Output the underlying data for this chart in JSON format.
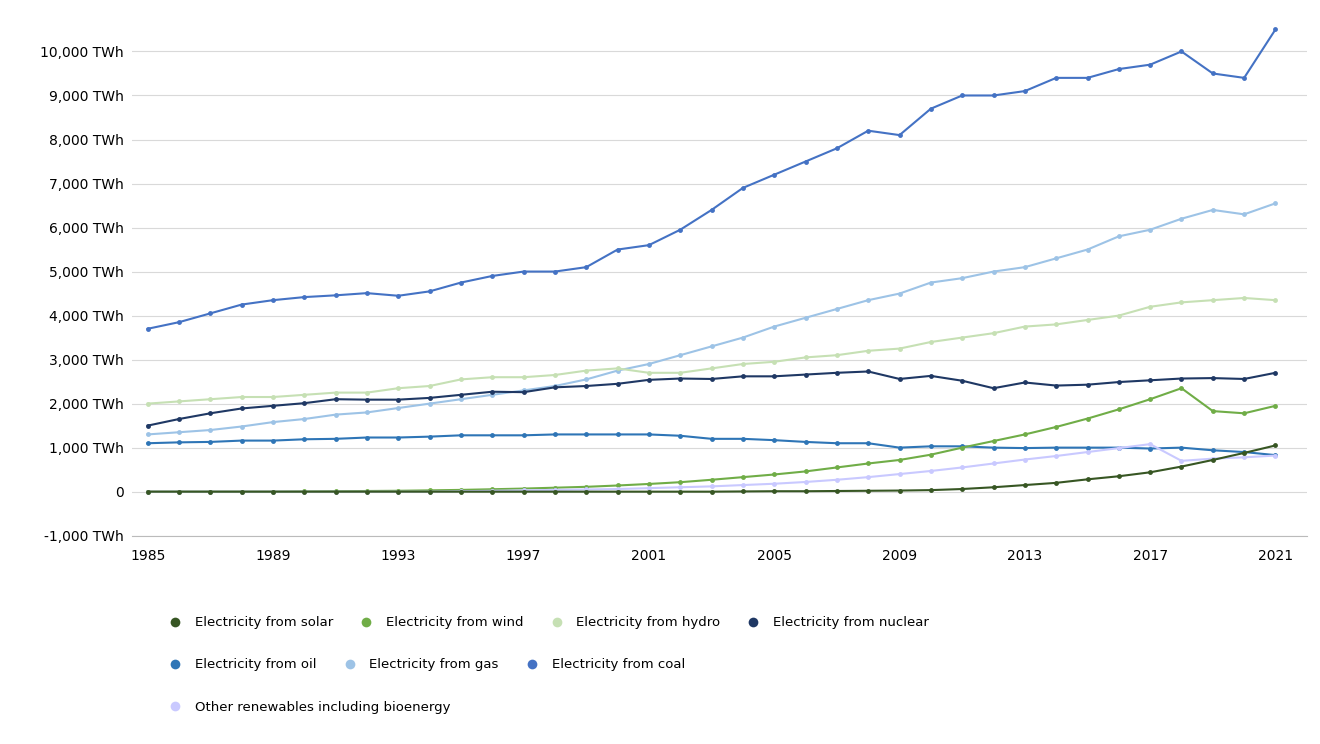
{
  "years": [
    1985,
    1986,
    1987,
    1988,
    1989,
    1990,
    1991,
    1992,
    1993,
    1994,
    1995,
    1996,
    1997,
    1998,
    1999,
    2000,
    2001,
    2002,
    2003,
    2004,
    2005,
    2006,
    2007,
    2008,
    2009,
    2010,
    2011,
    2012,
    2013,
    2014,
    2015,
    2016,
    2017,
    2018,
    2019,
    2020,
    2021
  ],
  "coal": [
    3700,
    3850,
    4050,
    4250,
    4350,
    4420,
    4460,
    4510,
    4450,
    4550,
    4750,
    4900,
    5000,
    5000,
    5100,
    5500,
    5600,
    5950,
    6400,
    6900,
    7200,
    7500,
    7800,
    8200,
    8100,
    8700,
    9000,
    9000,
    9100,
    9400,
    9400,
    9600,
    9700,
    10000,
    9500,
    9400,
    10500
  ],
  "gas": [
    1300,
    1350,
    1400,
    1480,
    1580,
    1650,
    1750,
    1800,
    1900,
    2000,
    2100,
    2200,
    2300,
    2400,
    2550,
    2750,
    2900,
    3100,
    3300,
    3500,
    3750,
    3950,
    4150,
    4350,
    4500,
    4750,
    4850,
    5000,
    5100,
    5300,
    5500,
    5800,
    5950,
    6200,
    6400,
    6300,
    6550
  ],
  "hydro": [
    2000,
    2050,
    2100,
    2150,
    2150,
    2200,
    2250,
    2250,
    2350,
    2400,
    2550,
    2600,
    2600,
    2650,
    2750,
    2800,
    2700,
    2700,
    2800,
    2900,
    2950,
    3050,
    3100,
    3200,
    3250,
    3400,
    3500,
    3600,
    3750,
    3800,
    3900,
    4000,
    4200,
    4300,
    4350,
    4400,
    4350
  ],
  "nuclear": [
    1500,
    1650,
    1780,
    1890,
    1950,
    2010,
    2100,
    2090,
    2090,
    2130,
    2200,
    2270,
    2260,
    2370,
    2400,
    2450,
    2540,
    2570,
    2560,
    2620,
    2620,
    2660,
    2700,
    2730,
    2560,
    2630,
    2520,
    2350,
    2480,
    2410,
    2430,
    2490,
    2530,
    2570,
    2580,
    2560,
    2700
  ],
  "oil": [
    1100,
    1120,
    1130,
    1160,
    1160,
    1190,
    1200,
    1230,
    1230,
    1250,
    1280,
    1280,
    1280,
    1300,
    1300,
    1300,
    1300,
    1270,
    1200,
    1200,
    1170,
    1130,
    1100,
    1100,
    1000,
    1030,
    1030,
    1000,
    990,
    1000,
    1000,
    1000,
    980,
    1000,
    940,
    900,
    830
  ],
  "solar": [
    0,
    0,
    0,
    0,
    0,
    0,
    0,
    0,
    0,
    0,
    0,
    0,
    0,
    0,
    0,
    0,
    0,
    0,
    0,
    5,
    10,
    10,
    15,
    20,
    25,
    35,
    60,
    100,
    150,
    200,
    280,
    350,
    440,
    570,
    720,
    880,
    1050
  ],
  "wind": [
    0,
    0,
    0,
    0,
    0,
    5,
    10,
    15,
    20,
    30,
    40,
    55,
    70,
    90,
    110,
    140,
    175,
    215,
    270,
    330,
    390,
    460,
    550,
    640,
    720,
    840,
    1000,
    1150,
    1300,
    1470,
    1660,
    1870,
    2100,
    2350,
    1830,
    1780,
    1950
  ],
  "other_renewables": [
    0,
    0,
    0,
    0,
    0,
    0,
    0,
    0,
    0,
    0,
    10,
    20,
    30,
    40,
    50,
    60,
    80,
    100,
    120,
    150,
    180,
    220,
    270,
    330,
    400,
    470,
    550,
    640,
    730,
    810,
    900,
    990,
    1080,
    700,
    750,
    780,
    820
  ],
  "colors": {
    "coal": "#4472C4",
    "gas": "#9DC3E6",
    "hydro": "#C6E0B4",
    "nuclear": "#1F3864",
    "oil": "#2E75B6",
    "solar": "#375623",
    "wind": "#70AD47",
    "other_renewables": "#C9C9FF"
  },
  "legend_row1": [
    {
      "label": "Electricity from solar",
      "color": "#375623"
    },
    {
      "label": "Electricity from wind",
      "color": "#70AD47"
    },
    {
      "label": "Electricity from hydro",
      "color": "#C6E0B4"
    },
    {
      "label": "Electricity from nuclear",
      "color": "#1F3864"
    }
  ],
  "legend_row2": [
    {
      "label": "Electricity from oil",
      "color": "#2E75B6"
    },
    {
      "label": "Electricity from gas",
      "color": "#9DC3E6"
    },
    {
      "label": "Electricity from coal",
      "color": "#4472C4"
    }
  ],
  "legend_row3": [
    {
      "label": "Other renewables including bioenergy",
      "color": "#C9C9FF"
    }
  ],
  "ylim": [
    -1000,
    11000
  ],
  "yticks": [
    -1000,
    0,
    1000,
    2000,
    3000,
    4000,
    5000,
    6000,
    7000,
    8000,
    9000,
    10000
  ],
  "xticks": [
    1985,
    1989,
    1993,
    1997,
    2001,
    2005,
    2009,
    2013,
    2017,
    2021
  ],
  "xlim": [
    1984.5,
    2022
  ],
  "background_color": "#ffffff",
  "grid_color": "#D9D9D9",
  "marker_size": 3.5,
  "line_width": 1.5
}
